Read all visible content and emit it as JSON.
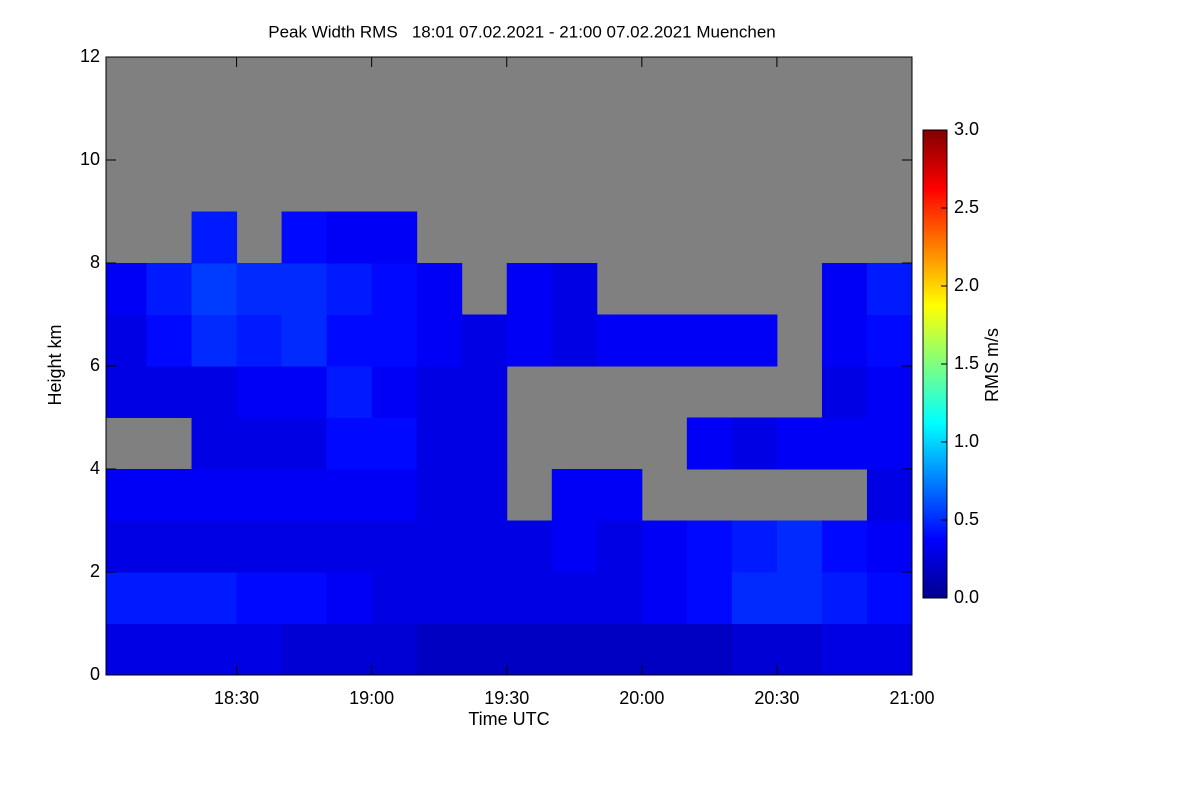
{
  "chart_data": {
    "type": "heatmap",
    "title": "Peak Width RMS   18:01 07.02.2021 - 21:00 07.02.2021 Muenchen",
    "x_label": "Time UTC",
    "y_label": "Height km",
    "colorbar_label": "RMS m/s",
    "xlim": [
      18.0167,
      21.0
    ],
    "xticks": [
      {
        "value": 18.5,
        "label": "18:30"
      },
      {
        "value": 19.0,
        "label": "19:00"
      },
      {
        "value": 19.5,
        "label": "19:30"
      },
      {
        "value": 20.0,
        "label": "20:00"
      },
      {
        "value": 20.5,
        "label": "20:30"
      },
      {
        "value": 21.0,
        "label": "21:00"
      }
    ],
    "ylim": [
      0,
      12
    ],
    "yticks": [
      0,
      2,
      4,
      6,
      8,
      10,
      12
    ],
    "clim": [
      0,
      3
    ],
    "cticks": [
      {
        "value": 0,
        "label": "0.0"
      },
      {
        "value": 0.5,
        "label": "0.5"
      },
      {
        "value": 1.0,
        "label": "1.0"
      },
      {
        "value": 1.5,
        "label": "1.5"
      },
      {
        "value": 2.0,
        "label": "2.0"
      },
      {
        "value": 2.5,
        "label": "2.5"
      },
      {
        "value": 3.0,
        "label": "3.0"
      }
    ],
    "colormap": "jet",
    "missing_color": "#808080",
    "x_edges": [
      18.0167,
      18.1667,
      18.3333,
      18.5,
      18.6667,
      18.8333,
      19.0,
      19.1667,
      19.3333,
      19.5,
      19.6667,
      19.8333,
      20.0,
      20.1667,
      20.3333,
      20.5,
      20.6667,
      20.8333,
      21.0
    ],
    "y_edges": [
      0,
      1,
      2,
      3,
      4,
      5,
      6,
      7,
      8,
      9,
      10,
      11,
      12
    ],
    "values": [
      [
        0.3,
        0.3,
        0.3,
        0.3,
        0.25,
        0.25,
        0.25,
        0.2,
        0.2,
        0.2,
        0.2,
        0.2,
        0.2,
        0.2,
        0.25,
        0.25,
        0.3,
        0.3
      ],
      [
        0.45,
        0.45,
        0.45,
        0.4,
        0.4,
        0.35,
        0.3,
        0.3,
        0.3,
        0.3,
        0.3,
        0.3,
        0.35,
        0.4,
        0.5,
        0.5,
        0.45,
        0.4
      ],
      [
        0.3,
        0.3,
        0.3,
        0.3,
        0.3,
        0.3,
        0.3,
        0.3,
        0.3,
        0.3,
        0.35,
        0.3,
        0.35,
        0.4,
        0.45,
        0.5,
        0.4,
        0.35
      ],
      [
        0.35,
        0.35,
        0.35,
        0.35,
        0.35,
        0.35,
        0.35,
        0.3,
        0.3,
        null,
        0.35,
        0.35,
        null,
        null,
        null,
        null,
        null,
        0.3
      ],
      [
        null,
        null,
        0.3,
        0.3,
        0.3,
        0.4,
        0.4,
        0.3,
        0.3,
        null,
        null,
        null,
        null,
        0.35,
        0.3,
        0.35,
        0.35,
        0.35
      ],
      [
        0.3,
        0.3,
        0.3,
        0.35,
        0.35,
        0.45,
        0.35,
        0.3,
        0.3,
        null,
        null,
        null,
        null,
        null,
        null,
        null,
        0.3,
        0.35
      ],
      [
        0.3,
        0.4,
        0.5,
        0.45,
        0.5,
        0.4,
        0.4,
        0.35,
        0.3,
        0.35,
        0.3,
        0.35,
        0.35,
        0.35,
        0.35,
        null,
        0.35,
        0.4
      ],
      [
        0.35,
        0.45,
        0.55,
        0.5,
        0.5,
        0.45,
        0.4,
        0.35,
        null,
        0.35,
        0.3,
        null,
        null,
        null,
        null,
        null,
        0.35,
        0.45
      ],
      [
        null,
        null,
        0.45,
        null,
        0.4,
        0.35,
        0.35,
        null,
        null,
        null,
        null,
        null,
        null,
        null,
        null,
        null,
        null,
        null
      ],
      [
        null,
        null,
        null,
        null,
        null,
        null,
        null,
        null,
        null,
        null,
        null,
        null,
        null,
        null,
        null,
        null,
        null,
        null
      ],
      [
        null,
        null,
        null,
        null,
        null,
        null,
        null,
        null,
        null,
        null,
        null,
        null,
        null,
        null,
        null,
        null,
        null,
        null
      ],
      [
        null,
        null,
        null,
        null,
        null,
        null,
        null,
        null,
        null,
        null,
        null,
        null,
        null,
        null,
        null,
        null,
        null,
        null
      ]
    ]
  }
}
